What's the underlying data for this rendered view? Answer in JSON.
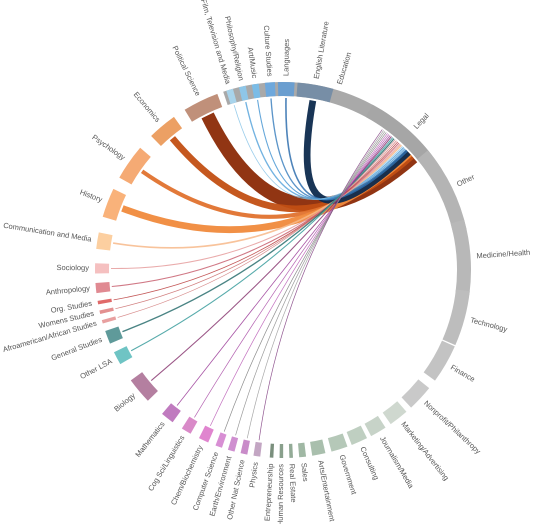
{
  "chart_data": {
    "type": "chord",
    "title": "",
    "groups": [
      {
        "label": "Education",
        "color": "#a9a9a9",
        "span": 72,
        "mid": 17
      },
      {
        "label": "Legal",
        "color": "#a6a6a6",
        "span": 30,
        "mid": 43
      },
      {
        "label": "Other",
        "color": "#b4b4b4",
        "span": 28,
        "mid": 64
      },
      {
        "label": "Medicine/Health",
        "color": "#b8b8b8",
        "span": 24,
        "mid": 86
      },
      {
        "label": "Technology",
        "color": "#bdbdbd",
        "span": 18,
        "mid": 105
      },
      {
        "label": "Finance",
        "color": "#c3c3c3",
        "span": 13,
        "mid": 120
      },
      {
        "label": "Nonprofit/Philanthropy",
        "color": "#c9c9c9",
        "span": 9,
        "mid": 133
      },
      {
        "label": "Marketing/Advertising",
        "color": "#cfd8cf",
        "span": 7,
        "mid": 142
      },
      {
        "label": "Journalism/Media",
        "color": "#c7d3c8",
        "span": 6,
        "mid": 149.5
      },
      {
        "label": "Consulting",
        "color": "#bfcfc1",
        "span": 6,
        "mid": 156
      },
      {
        "label": "Government",
        "color": "#b5c8b8",
        "span": 6,
        "mid": 162.5
      },
      {
        "label": "Arts/Entertainment",
        "color": "#a9bfad",
        "span": 5,
        "mid": 169
      },
      {
        "label": "Sales",
        "color": "#a0b8a4",
        "span": 3,
        "mid": 174
      },
      {
        "label": "Real Estate",
        "color": "#93ab97",
        "span": 2,
        "mid": 177.5
      },
      {
        "label": "Human Resources",
        "color": "#89a08c",
        "span": 2,
        "mid": 180.5
      },
      {
        "label": "Entrepreneurship",
        "color": "#7a8f7d",
        "span": 2,
        "mid": 183.5
      },
      {
        "label": "Physics",
        "color": "#c3a6c3",
        "span": 3,
        "mid": 188
      },
      {
        "label": "Other Nat Science",
        "color": "#c98cc9",
        "span": 3,
        "mid": 192
      },
      {
        "label": "Earth/Environment",
        "color": "#cf8fd0",
        "span": 3,
        "mid": 196
      },
      {
        "label": "Computer Science",
        "color": "#d88fd4",
        "span": 3,
        "mid": 200
      },
      {
        "label": "Chem/Biochemistry",
        "color": "#e085cf",
        "span": 4,
        "mid": 205
      },
      {
        "label": "Cog Sci/Linguistics",
        "color": "#d98ac8",
        "span": 4,
        "mid": 211
      },
      {
        "label": "Mathematics",
        "color": "#c07bbf",
        "span": 5,
        "mid": 218
      },
      {
        "label": "Biology",
        "color": "#b47fa0",
        "span": 9,
        "mid": 230
      },
      {
        "label": "Other LSA",
        "color": "#6fc4c4",
        "span": 5,
        "mid": 242
      },
      {
        "label": "General Studies",
        "color": "#5f9a9a",
        "span": 5,
        "mid": 249
      },
      {
        "label": "Afroamerican/African Studies",
        "color": "#e8a0a0",
        "span": 2,
        "mid": 254
      },
      {
        "label": "Womens Studies",
        "color": "#e39090",
        "span": 2,
        "mid": 257
      },
      {
        "label": "Org. Studies",
        "color": "#e06a6a",
        "span": 2,
        "mid": 260
      },
      {
        "label": "Anthropology",
        "color": "#e08a92",
        "span": 4,
        "mid": 264.5
      },
      {
        "label": "Sociology",
        "color": "#f5c0c0",
        "span": 4,
        "mid": 270.5
      },
      {
        "label": "Communication and Media",
        "color": "#fccfa0",
        "span": 6,
        "mid": 279
      },
      {
        "label": "History",
        "color": "#f9b27a",
        "span": 10,
        "mid": 291
      },
      {
        "label": "Psychology",
        "color": "#f5aa74",
        "span": 12,
        "mid": 305
      },
      {
        "label": "Economics",
        "color": "#eca064",
        "span": 10,
        "mid": 320
      },
      {
        "label": "Political Science",
        "color": "#c0907a",
        "span": 12,
        "mid": 334
      },
      {
        "label": "Film, Television and Media",
        "color": "#a8d4ec",
        "span": 3,
        "mid": 343.5
      },
      {
        "label": "Philosophy/Religion",
        "color": "#8ec6e8",
        "span": 3,
        "mid": 347.5
      },
      {
        "label": "Art/Music",
        "color": "#7bbce6",
        "span": 3,
        "mid": 351.5
      },
      {
        "label": "Culture Studies",
        "color": "#6ea8dc",
        "span": 4,
        "mid": 356
      },
      {
        "label": "Languages",
        "color": "#6a9ed0",
        "span": 6,
        "mid": 1
      },
      {
        "label": "English Literature",
        "color": "#778ea6",
        "span": 12,
        "mid": 10
      }
    ],
    "chords": [
      {
        "source": "Political Science",
        "target": "Legal",
        "value": 10,
        "color": "#8b2a06"
      },
      {
        "source": "Economics",
        "target": "Legal",
        "value": 5,
        "color": "#c24f13"
      },
      {
        "source": "Psychology",
        "target": "Legal",
        "value": 3,
        "color": "#e0722e"
      },
      {
        "source": "History",
        "target": "Legal",
        "value": 5,
        "color": "#f08a3c"
      },
      {
        "source": "English Literature",
        "target": "Legal",
        "value": 5,
        "color": "#0d2a4d"
      },
      {
        "source": "Languages",
        "target": "Legal",
        "value": 1.2,
        "color": "#2f6fae"
      },
      {
        "source": "Culture Studies",
        "target": "Legal",
        "value": 1.0,
        "color": "#3f82c0"
      },
      {
        "source": "Art/Music",
        "target": "Legal",
        "value": 0.8,
        "color": "#4a98d4"
      },
      {
        "source": "Philosophy/Religion",
        "target": "Legal",
        "value": 1.0,
        "color": "#5aa6dc"
      },
      {
        "source": "Film, Television and Media",
        "target": "Legal",
        "value": 0.6,
        "color": "#88c4e8"
      },
      {
        "source": "Communication and Media",
        "target": "Legal",
        "value": 1.2,
        "color": "#f7b98a"
      },
      {
        "source": "Sociology",
        "target": "Legal",
        "value": 0.8,
        "color": "#e59c9c"
      },
      {
        "source": "Anthropology",
        "target": "Legal",
        "value": 0.8,
        "color": "#c86070"
      },
      {
        "source": "Org. Studies",
        "target": "Legal",
        "value": 0.6,
        "color": "#b83a3a"
      },
      {
        "source": "Womens Studies",
        "target": "Legal",
        "value": 0.5,
        "color": "#c96868"
      },
      {
        "source": "Afroamerican/African Studies",
        "target": "Legal",
        "value": 0.5,
        "color": "#d07878"
      },
      {
        "source": "General Studies",
        "target": "Legal",
        "value": 1.0,
        "color": "#2a6e6e"
      },
      {
        "source": "Other LSA",
        "target": "Legal",
        "value": 0.8,
        "color": "#3a9c9c"
      },
      {
        "source": "Biology",
        "target": "Legal",
        "value": 0.8,
        "color": "#8a3a72"
      },
      {
        "source": "Mathematics",
        "target": "Legal",
        "value": 0.6,
        "color": "#9a3a96"
      },
      {
        "source": "Cog Sci/Linguistics",
        "target": "Legal",
        "value": 0.5,
        "color": "#a84aa4"
      },
      {
        "source": "Chem/Biochemistry",
        "target": "Legal",
        "value": 0.5,
        "color": "#b858b4"
      },
      {
        "source": "Computer Science",
        "target": "Legal",
        "value": 0.4,
        "color": "#7a7a7a"
      },
      {
        "source": "Earth/Environment",
        "target": "Legal",
        "value": 0.4,
        "color": "#8a8a8a"
      },
      {
        "source": "Other Nat Science",
        "target": "Legal",
        "value": 0.4,
        "color": "#9a9a9a"
      },
      {
        "source": "Physics",
        "target": "Legal",
        "value": 0.4,
        "color": "#7e3a7e"
      }
    ]
  }
}
